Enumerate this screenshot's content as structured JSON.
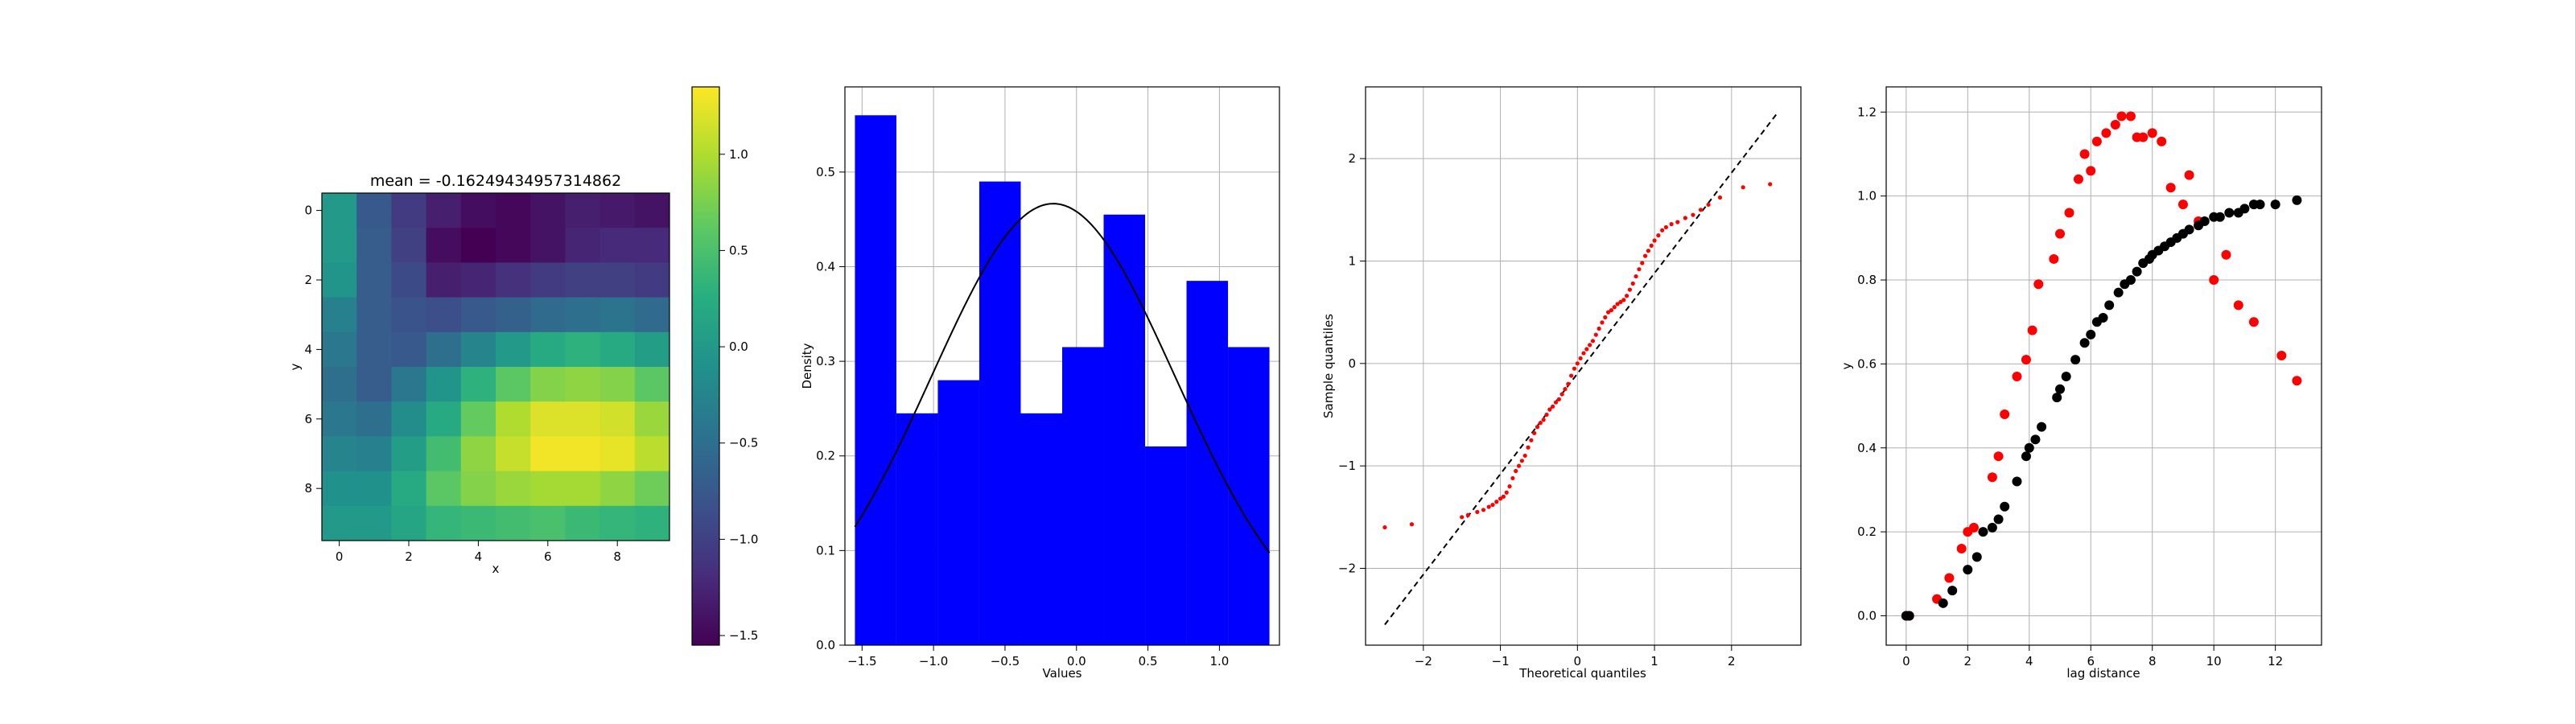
{
  "colors": {
    "hist_fill": "#0000ff",
    "pdf_line": "#000000",
    "qq_points": "#ff0000",
    "qq_line": "#000000",
    "experimental_variogram": "#ff0000",
    "model_variogram": "#000000",
    "grid": "#b0b0b0"
  },
  "chart_data": [
    {
      "type": "heatmap",
      "title": "mean = -0.16249434957314862",
      "xlabel": "x",
      "ylabel": "y",
      "colormap": "viridis",
      "xticks": [
        "0",
        "2",
        "4",
        "6",
        "8"
      ],
      "yticks": [
        "0",
        "2",
        "4",
        "6",
        "8"
      ],
      "origin": "top",
      "values": [
        [
          0.0,
          -0.75,
          -1.05,
          -1.3,
          -1.45,
          -1.5,
          -1.4,
          -1.3,
          -1.35,
          -1.4
        ],
        [
          0.0,
          -0.7,
          -1.0,
          -1.45,
          -1.55,
          -1.5,
          -1.4,
          -1.25,
          -1.2,
          -1.2
        ],
        [
          -0.05,
          -0.7,
          -0.9,
          -1.3,
          -1.25,
          -1.15,
          -1.05,
          -1.0,
          -1.0,
          -1.05
        ],
        [
          -0.3,
          -0.7,
          -0.8,
          -0.85,
          -0.75,
          -0.65,
          -0.55,
          -0.5,
          -0.45,
          -0.55
        ],
        [
          -0.4,
          -0.7,
          -0.75,
          -0.5,
          -0.25,
          0.0,
          0.2,
          0.3,
          0.2,
          0.05
        ],
        [
          -0.5,
          -0.7,
          -0.4,
          -0.05,
          0.3,
          0.6,
          0.8,
          0.85,
          0.8,
          0.6
        ],
        [
          -0.4,
          -0.5,
          -0.15,
          0.2,
          0.65,
          1.0,
          1.2,
          1.2,
          1.15,
          0.9
        ],
        [
          -0.25,
          -0.3,
          0.05,
          0.45,
          0.85,
          1.1,
          1.3,
          1.3,
          1.25,
          1.05
        ],
        [
          -0.1,
          -0.1,
          0.2,
          0.6,
          0.8,
          0.9,
          0.95,
          0.95,
          0.85,
          0.7
        ],
        [
          0.0,
          0.0,
          0.15,
          0.35,
          0.4,
          0.45,
          0.5,
          0.4,
          0.35,
          0.3
        ]
      ],
      "colorbar": {
        "range": [
          -1.55,
          1.35
        ],
        "ticks": [
          -1.5,
          -1.0,
          -0.5,
          0.0,
          0.5,
          1.0
        ],
        "tick_labels": [
          "−1.5",
          "−1.0",
          "−0.5",
          "0.0",
          "0.5",
          "1.0"
        ]
      }
    },
    {
      "type": "bar",
      "xlabel": "Values",
      "ylabel": "Density",
      "xlim": [
        -1.62,
        1.42
      ],
      "ylim": [
        0,
        0.59
      ],
      "grid": true,
      "xticks": [
        -1.5,
        -1.0,
        -0.5,
        0.0,
        0.5,
        1.0
      ],
      "xtick_labels": [
        "−1.5",
        "−1.0",
        "−0.5",
        "0.0",
        "0.5",
        "1.0"
      ],
      "yticks": [
        0.0,
        0.1,
        0.2,
        0.3,
        0.4,
        0.5
      ],
      "ytick_labels": [
        "0.0",
        "0.1",
        "0.2",
        "0.3",
        "0.4",
        "0.5"
      ],
      "bin_edges": [
        -1.55,
        -1.26,
        -0.97,
        -0.68,
        -0.39,
        -0.1,
        0.19,
        0.48,
        0.77,
        1.06,
        1.35
      ],
      "density": [
        0.56,
        0.245,
        0.28,
        0.49,
        0.245,
        0.315,
        0.455,
        0.21,
        0.385,
        0.315
      ],
      "normal_pdf": {
        "mean": -0.1625,
        "std": 0.855
      }
    },
    {
      "type": "scatter",
      "xlabel": "Theoretical quantiles",
      "ylabel": "Sample quantiles",
      "xlim": [
        -2.75,
        2.9
      ],
      "ylim": [
        -2.75,
        2.7
      ],
      "grid": true,
      "xticks": [
        -2,
        -1,
        0,
        1,
        2
      ],
      "xtick_labels": [
        "−2",
        "−1",
        "0",
        "1",
        "2"
      ],
      "yticks": [
        -2,
        -1,
        0,
        1,
        2
      ],
      "ytick_labels": [
        "−2",
        "−1",
        "0",
        "1",
        "2"
      ],
      "reference_line": {
        "x": [
          -2.5,
          2.6
        ],
        "y": [
          -2.55,
          2.45
        ],
        "style": "dashed"
      },
      "points": {
        "x": [
          -2.5,
          -2.15,
          -1.5,
          -1.42,
          -1.3,
          -1.22,
          -1.15,
          -1.1,
          -1.05,
          -1.0,
          -0.96,
          -0.92,
          -0.88,
          -0.84,
          -0.8,
          -0.76,
          -0.72,
          -0.68,
          -0.64,
          -0.6,
          -0.56,
          -0.52,
          -0.48,
          -0.44,
          -0.4,
          -0.36,
          -0.32,
          -0.28,
          -0.24,
          -0.2,
          -0.16,
          -0.12,
          -0.08,
          -0.04,
          0.0,
          0.04,
          0.08,
          0.12,
          0.16,
          0.2,
          0.24,
          0.28,
          0.32,
          0.36,
          0.4,
          0.44,
          0.48,
          0.52,
          0.56,
          0.6,
          0.64,
          0.68,
          0.72,
          0.76,
          0.8,
          0.84,
          0.88,
          0.92,
          0.96,
          1.0,
          1.05,
          1.1,
          1.15,
          1.22,
          1.3,
          1.4,
          1.5,
          1.6,
          1.7,
          1.85,
          2.15,
          2.5
        ],
        "y": [
          -1.6,
          -1.57,
          -1.5,
          -1.48,
          -1.45,
          -1.43,
          -1.4,
          -1.38,
          -1.35,
          -1.32,
          -1.3,
          -1.26,
          -1.2,
          -1.12,
          -1.05,
          -1.0,
          -0.95,
          -0.9,
          -0.82,
          -0.75,
          -0.68,
          -0.62,
          -0.58,
          -0.55,
          -0.5,
          -0.45,
          -0.42,
          -0.38,
          -0.35,
          -0.3,
          -0.25,
          -0.2,
          -0.12,
          -0.05,
          0.0,
          0.05,
          0.1,
          0.14,
          0.18,
          0.22,
          0.28,
          0.34,
          0.4,
          0.45,
          0.5,
          0.52,
          0.55,
          0.58,
          0.6,
          0.62,
          0.66,
          0.72,
          0.78,
          0.85,
          0.92,
          0.98,
          1.05,
          1.1,
          1.15,
          1.2,
          1.25,
          1.3,
          1.33,
          1.36,
          1.38,
          1.42,
          1.45,
          1.5,
          1.55,
          1.62,
          1.72,
          1.75
        ]
      }
    },
    {
      "type": "scatter",
      "xlabel": "lag distance",
      "ylabel": "y",
      "xlim": [
        -0.65,
        13.5
      ],
      "ylim": [
        -0.07,
        1.26
      ],
      "grid": true,
      "xticks": [
        0,
        2,
        4,
        6,
        8,
        10,
        12
      ],
      "xtick_labels": [
        "0",
        "2",
        "4",
        "6",
        "8",
        "10",
        "12"
      ],
      "yticks": [
        0.0,
        0.2,
        0.4,
        0.6,
        0.8,
        1.0,
        1.2
      ],
      "ytick_labels": [
        "0.0",
        "0.2",
        "0.4",
        "0.6",
        "0.8",
        "1.0",
        "1.2"
      ],
      "series": [
        {
          "x": [
            0.0,
            0.1,
            1.0,
            1.4,
            1.8,
            2.0,
            2.2,
            2.8,
            3.0,
            3.2,
            3.6,
            3.9,
            4.1,
            4.3,
            4.8,
            5.0,
            5.3,
            5.6,
            5.8,
            6.0,
            6.2,
            6.5,
            6.8,
            7.0,
            7.3,
            7.5,
            7.7,
            8.0,
            8.3,
            8.6,
            9.0,
            9.2,
            9.5,
            10.0,
            10.4,
            10.8,
            11.3,
            12.2,
            12.7
          ],
          "y": [
            0.0,
            0.0,
            0.04,
            0.09,
            0.16,
            0.2,
            0.21,
            0.33,
            0.38,
            0.48,
            0.57,
            0.61,
            0.68,
            0.79,
            0.85,
            0.91,
            0.96,
            1.04,
            1.1,
            1.06,
            1.13,
            1.15,
            1.17,
            1.19,
            1.19,
            1.14,
            1.14,
            1.15,
            1.13,
            1.02,
            0.98,
            1.05,
            0.94,
            0.8,
            0.86,
            0.74,
            0.7,
            0.62,
            0.56
          ]
        },
        {
          "x": [
            0.0,
            0.1,
            1.2,
            1.5,
            2.0,
            2.3,
            2.5,
            2.8,
            3.0,
            3.2,
            3.6,
            3.9,
            4.0,
            4.2,
            4.4,
            4.9,
            5.0,
            5.2,
            5.5,
            5.8,
            6.0,
            6.2,
            6.4,
            6.6,
            6.9,
            7.1,
            7.3,
            7.5,
            7.7,
            7.9,
            8.0,
            8.2,
            8.4,
            8.6,
            8.8,
            9.0,
            9.2,
            9.5,
            9.7,
            10.0,
            10.2,
            10.5,
            10.8,
            11.0,
            11.3,
            11.5,
            12.0,
            12.7
          ],
          "y": [
            0.0,
            0.0,
            0.03,
            0.06,
            0.11,
            0.14,
            0.2,
            0.21,
            0.23,
            0.26,
            0.32,
            0.38,
            0.4,
            0.42,
            0.45,
            0.52,
            0.54,
            0.57,
            0.61,
            0.65,
            0.67,
            0.7,
            0.71,
            0.74,
            0.77,
            0.79,
            0.8,
            0.82,
            0.84,
            0.85,
            0.86,
            0.87,
            0.88,
            0.89,
            0.9,
            0.91,
            0.92,
            0.93,
            0.94,
            0.95,
            0.95,
            0.96,
            0.96,
            0.97,
            0.98,
            0.98,
            0.98,
            0.99
          ]
        }
      ]
    }
  ]
}
